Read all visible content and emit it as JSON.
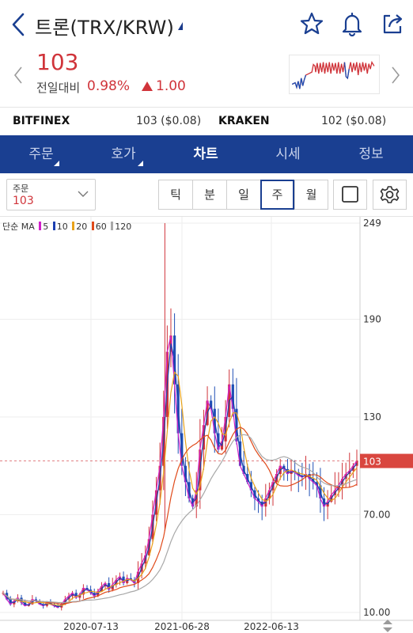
{
  "header": {
    "title": "트론(TRX/KRW)"
  },
  "quote": {
    "price": "103",
    "change_label": "전일대비",
    "change_pct": "0.98%",
    "change_value": "1.00"
  },
  "exchanges": [
    {
      "name": "BITFINEX",
      "value": "103 ($0.08)"
    },
    {
      "name": "KRAKEN",
      "value": "102 ($0.08)"
    }
  ],
  "tabs": [
    {
      "label": "주문",
      "has_menu": true
    },
    {
      "label": "호가",
      "has_menu": true
    },
    {
      "label": "차트",
      "active": true
    },
    {
      "label": "시세"
    },
    {
      "label": "정보"
    }
  ],
  "toolbar": {
    "order_label": "주문",
    "order_value": "103",
    "periods": [
      "틱",
      "분",
      "일",
      "주",
      "월"
    ],
    "active_period": "주"
  },
  "colors": {
    "up": "#d0343a",
    "down": "#1f4fb5",
    "brand": "#1a3f91"
  },
  "chart_data": {
    "type": "line",
    "legend": {
      "prefix": "단순 MA",
      "periods": [
        "5",
        "10",
        "20",
        "60",
        "120"
      ],
      "colors": [
        "#d11ec9",
        "#1c3fb0",
        "#e8a21a",
        "#e04a1a",
        "#a8a8a8"
      ]
    },
    "y_axis_labels": [
      "249",
      "190",
      "130",
      "70.00",
      "10.00"
    ],
    "y_range": [
      10,
      249
    ],
    "x_axis_labels": [
      "2020-07-13",
      "2021-06-28",
      "2022-06-13"
    ],
    "current_price_label": "103",
    "close_series": [
      22,
      18,
      15,
      17,
      19,
      16,
      14,
      15,
      18,
      17,
      15,
      14,
      16,
      15,
      14,
      13,
      15,
      18,
      20,
      22,
      19,
      21,
      25,
      24,
      22,
      20,
      23,
      26,
      28,
      24,
      27,
      30,
      32,
      28,
      31,
      30,
      28,
      35,
      40,
      45,
      55,
      70,
      85,
      100,
      130,
      170,
      180,
      150,
      120,
      100,
      90,
      80,
      75,
      85,
      110,
      125,
      140,
      135,
      120,
      110,
      115,
      130,
      150,
      135,
      115,
      100,
      95,
      90,
      85,
      80,
      78,
      75,
      80,
      85,
      90,
      95,
      100,
      98,
      95,
      97,
      96,
      94,
      93,
      95,
      92,
      90,
      88,
      80,
      75,
      78,
      82,
      85,
      88,
      92,
      95,
      97,
      100,
      103
    ]
  }
}
